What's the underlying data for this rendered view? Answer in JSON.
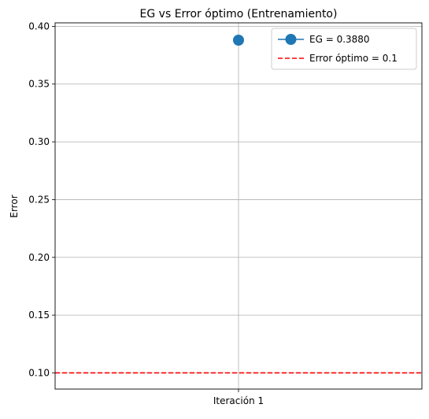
{
  "chart_data": {
    "type": "line",
    "title": "EG vs Error óptimo (Entrenamiento)",
    "xlabel": "",
    "ylabel": "Error",
    "categories": [
      "Iteración 1"
    ],
    "ylim": [
      0.086,
      0.403
    ],
    "yticks": [
      "0.10",
      "0.15",
      "0.20",
      "0.25",
      "0.30",
      "0.35",
      "0.40"
    ],
    "grid": true,
    "legend_position": "top-right",
    "series": [
      {
        "name": "EG = 0.3880",
        "values": [
          0.388
        ],
        "color": "#1f77b4",
        "marker": "circle"
      }
    ],
    "reference_lines": [
      {
        "name": "Error óptimo = 0.1",
        "value": 0.1,
        "color": "#ff0000",
        "style": "dashed"
      }
    ]
  }
}
